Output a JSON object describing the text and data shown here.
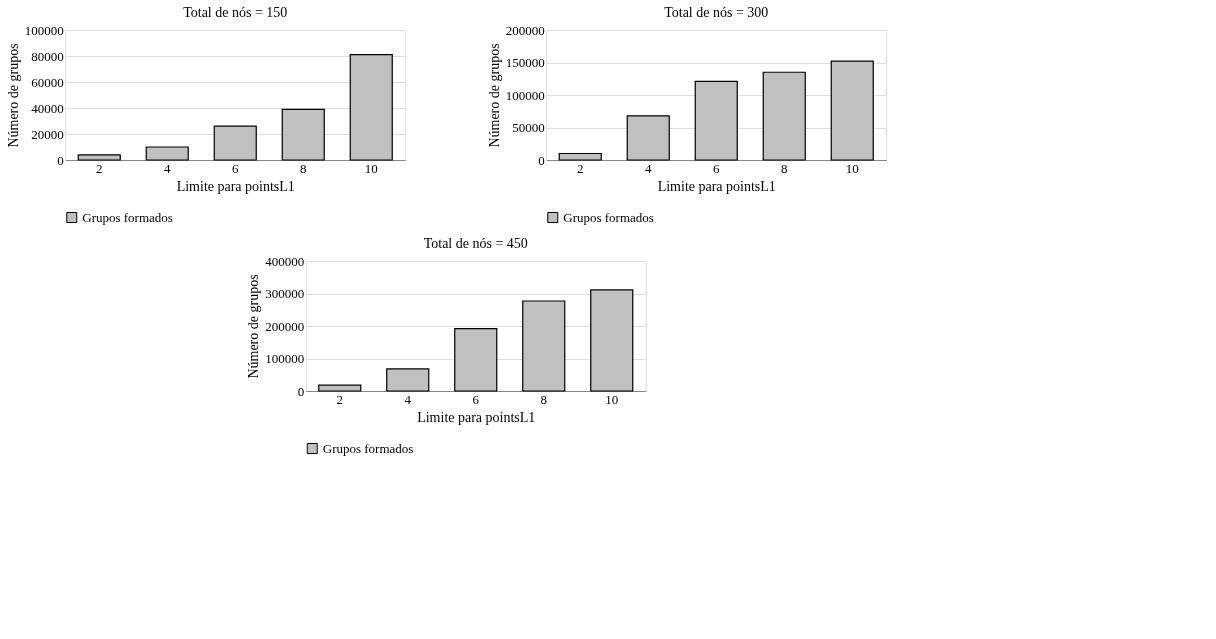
{
  "chart_data": [
    {
      "type": "bar",
      "title": "Total de nós = 150",
      "xlabel": "Limite para pointsL1",
      "ylabel": "Número de grupos",
      "categories": [
        "2",
        "4",
        "6",
        "8",
        "10"
      ],
      "series": [
        {
          "name": "Grupos formados",
          "color": "#c0c0c0",
          "values": [
            4000,
            10000,
            26000,
            39000,
            81000
          ]
        }
      ],
      "ylim": [
        0,
        100000
      ],
      "yticks": [
        0,
        20000,
        40000,
        60000,
        80000,
        100000
      ],
      "grid": "y",
      "legend": "bottom"
    },
    {
      "type": "bar",
      "title": "Total de nós = 300",
      "xlabel": "Limite para pointsL1",
      "ylabel": "Número de grupos",
      "categories": [
        "2",
        "4",
        "6",
        "8",
        "10"
      ],
      "series": [
        {
          "name": "Grupos formados",
          "color": "#c0c0c0",
          "values": [
            10000,
            68000,
            121000,
            135000,
            152000
          ]
        }
      ],
      "ylim": [
        0,
        200000
      ],
      "yticks": [
        0,
        50000,
        100000,
        150000,
        200000
      ],
      "grid": "y",
      "legend": "bottom"
    },
    {
      "type": "bar",
      "title": "Total de nós = 450",
      "xlabel": "Limite para pointsL1",
      "ylabel": "Número de grupos",
      "categories": [
        "2",
        "4",
        "6",
        "8",
        "10"
      ],
      "series": [
        {
          "name": "Grupos formados",
          "color": "#c0c0c0",
          "values": [
            18000,
            68000,
            192000,
            277000,
            311000
          ]
        }
      ],
      "ylim": [
        0,
        400000
      ],
      "yticks": [
        0,
        100000,
        200000,
        300000,
        400000
      ],
      "grid": "y",
      "legend": "bottom"
    }
  ]
}
